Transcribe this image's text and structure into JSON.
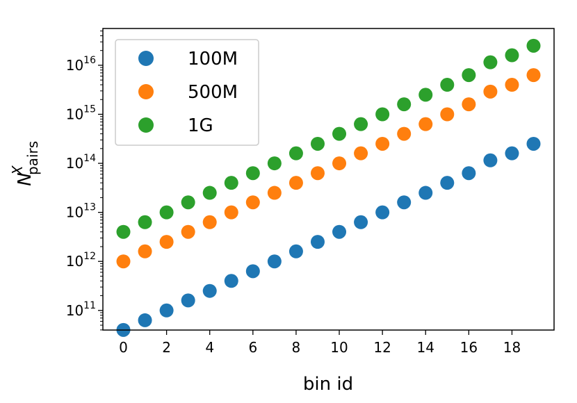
{
  "chart_data": {
    "type": "scatter",
    "xlabel": "bin id",
    "ylabel": {
      "base": "N",
      "superscript": "X",
      "subscript": "pairs"
    },
    "xlim": [
      -0.95,
      19.95
    ],
    "ylim_log10": [
      10.6,
      16.75
    ],
    "yscale": "log",
    "x_ticks": [
      0,
      2,
      4,
      6,
      8,
      10,
      12,
      14,
      16,
      18
    ],
    "y_ticks": [
      {
        "base": "10",
        "exp": "11"
      },
      {
        "base": "10",
        "exp": "12"
      },
      {
        "base": "10",
        "exp": "13"
      },
      {
        "base": "10",
        "exp": "14"
      },
      {
        "base": "10",
        "exp": "15"
      },
      {
        "base": "10",
        "exp": "16"
      }
    ],
    "legend_position": "top-left",
    "x": [
      0,
      1,
      2,
      3,
      4,
      5,
      6,
      7,
      8,
      9,
      10,
      11,
      12,
      13,
      14,
      15,
      16,
      17,
      18,
      19
    ],
    "series": [
      {
        "name": "100M",
        "color": "#1f77b4",
        "values": [
          40000000000.0,
          63000000000.0,
          100000000000.0,
          160000000000.0,
          250000000000.0,
          400000000000.0,
          630000000000.0,
          1000000000000.0,
          1600000000000.0,
          2500000000000.0,
          4000000000000.0,
          6300000000000.0,
          10000000000000.0,
          16000000000000.0,
          25000000000000.0,
          40000000000000.0,
          63000000000000.0,
          115000000000000.0,
          160000000000000.0,
          250000000000000.0
        ]
      },
      {
        "name": "500M",
        "color": "#ff7f0e",
        "values": [
          1000000000000.0,
          1600000000000.0,
          2500000000000.0,
          4000000000000.0,
          6300000000000.0,
          10000000000000.0,
          16000000000000.0,
          25000000000000.0,
          40000000000000.0,
          63000000000000.0,
          100000000000000.0,
          160000000000000.0,
          250000000000000.0,
          400000000000000.0,
          630000000000000.0,
          1000000000000000.0,
          1600000000000000.0,
          2900000000000000.0,
          4000000000000000.0,
          6300000000000000.0
        ]
      },
      {
        "name": "1G",
        "color": "#2ca02c",
        "values": [
          4000000000000.0,
          6300000000000.0,
          10000000000000.0,
          16000000000000.0,
          25000000000000.0,
          40000000000000.0,
          63000000000000.0,
          100000000000000.0,
          160000000000000.0,
          250000000000000.0,
          400000000000000.0,
          630000000000000.0,
          1000000000000000.0,
          1600000000000000.0,
          2500000000000000.0,
          4000000000000000.0,
          6300000000000000.0,
          1.15e+16,
          1.6e+16,
          2.5e+16
        ]
      }
    ]
  }
}
